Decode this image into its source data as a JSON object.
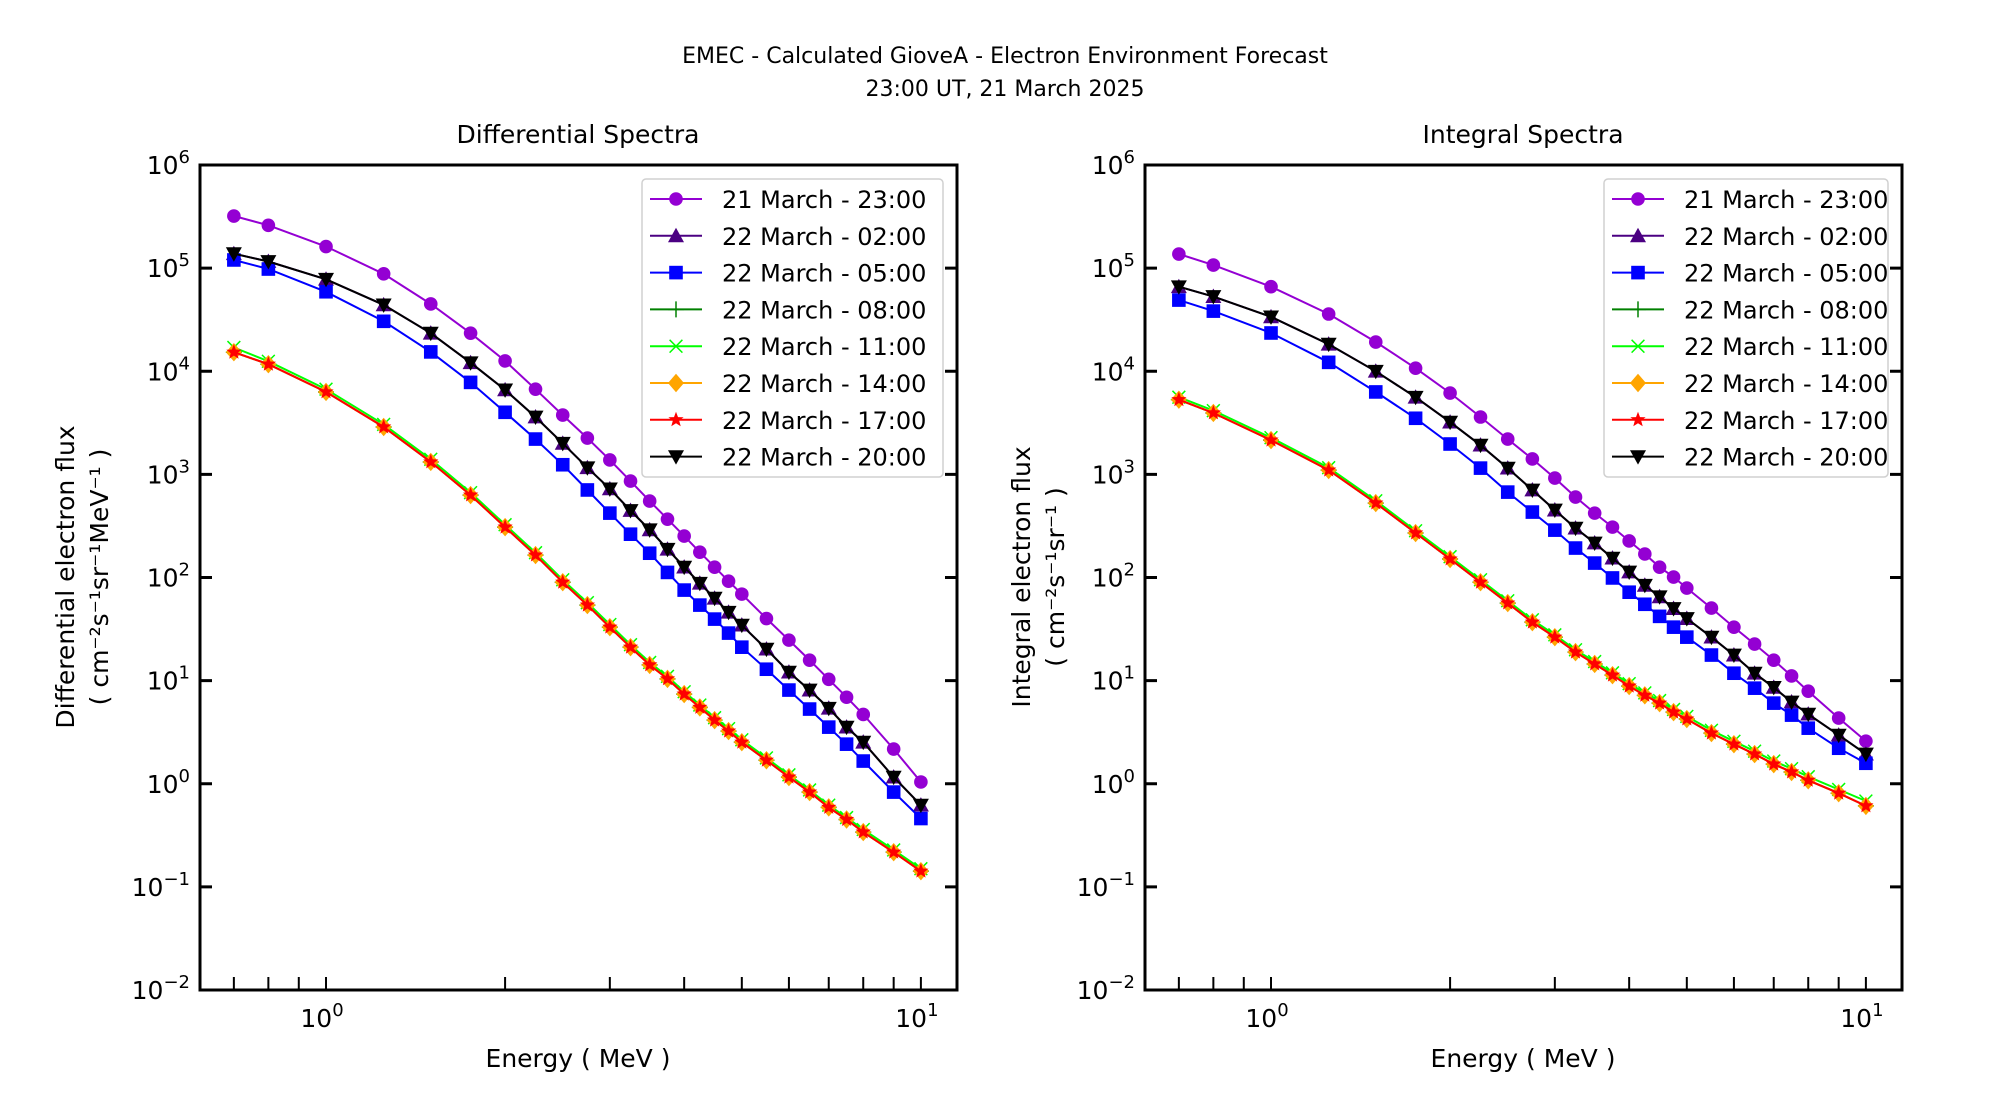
{
  "figure": {
    "title_line1": "EMEC - Calculated GioveA - Electron Environment Forecast",
    "title_line2": "23:00 UT, 21 March 2025"
  },
  "chart_data": [
    {
      "type": "line",
      "title": "Differential Spectra",
      "xlabel": "Energy ( MeV )",
      "ylabel_line1": "Differential electron flux",
      "ylabel_line2": "( cm⁻²s⁻¹sr⁻¹MeV⁻¹ )",
      "xscale": "log",
      "yscale": "log",
      "xlim": [
        0.614,
        11.5
      ],
      "ylim": [
        0.01,
        1000000
      ],
      "xticks": [
        {
          "value": 1,
          "base": "10",
          "exp": "0"
        },
        {
          "value": 10,
          "base": "10",
          "exp": "1"
        }
      ],
      "yticks": [
        {
          "value": 0.01,
          "base": "10",
          "exp": "−2"
        },
        {
          "value": 0.1,
          "base": "10",
          "exp": "−1"
        },
        {
          "value": 1,
          "base": "10",
          "exp": "0"
        },
        {
          "value": 10,
          "base": "10",
          "exp": "1"
        },
        {
          "value": 100,
          "base": "10",
          "exp": "2"
        },
        {
          "value": 1000,
          "base": "10",
          "exp": "3"
        },
        {
          "value": 10000,
          "base": "10",
          "exp": "4"
        },
        {
          "value": 100000,
          "base": "10",
          "exp": "5"
        },
        {
          "value": 1000000,
          "base": "10",
          "exp": "6"
        }
      ],
      "grid": false,
      "legend_position": "top-right",
      "x": [
        0.7,
        0.8,
        1.0,
        1.25,
        1.5,
        1.75,
        2.0,
        2.25,
        2.5,
        2.75,
        3.0,
        3.25,
        3.5,
        3.75,
        4.0,
        4.25,
        4.5,
        4.75,
        5.0,
        5.5,
        6.0,
        6.5,
        7.0,
        7.5,
        8.0,
        9.0,
        10.0
      ],
      "series": [
        {
          "name": "21 March - 23:00",
          "color": "#9400d3",
          "marker": "circle",
          "values": [
            320000,
            260000,
            162000,
            88000,
            44900,
            23400,
            12600,
            6700,
            3760,
            2250,
            1380,
            861,
            551,
            368,
            252,
            176,
            126,
            92,
            69,
            40,
            24.7,
            15.8,
            10.3,
            6.9,
            4.7,
            2.17,
            1.04
          ]
        },
        {
          "name": "22 March - 02:00",
          "color": "#4b0082",
          "marker": "triangle-up",
          "values": [
            138000,
            116000,
            78000,
            44000,
            23400,
            12100,
            6600,
            3600,
            2000,
            1160,
            724,
            446,
            290,
            188,
            126,
            88,
            63,
            46,
            34.5,
            20.2,
            12.1,
            8.1,
            5.4,
            3.54,
            2.53,
            1.16,
            0.62
          ]
        },
        {
          "name": "22 March - 05:00",
          "color": "#0000ff",
          "marker": "square",
          "values": [
            120000,
            98000,
            59000,
            30500,
            15400,
            7800,
            4000,
            2200,
            1240,
            706,
            421,
            263,
            172,
            112,
            75.5,
            54,
            39.5,
            28.9,
            21.1,
            12.9,
            8.1,
            5.3,
            3.54,
            2.42,
            1.66,
            0.83,
            0.46
          ]
        },
        {
          "name": "22 March - 08:00",
          "color": "#008000",
          "marker": "plus",
          "values": [
            15300,
            11700,
            6300,
            2880,
            1320,
            630,
            308,
            165,
            90,
            54,
            33,
            21.1,
            14.2,
            10.4,
            7.4,
            5.5,
            4.14,
            3.24,
            2.53,
            1.69,
            1.16,
            0.83,
            0.59,
            0.45,
            0.34,
            0.217,
            0.142
          ]
        },
        {
          "name": "22 March - 11:00",
          "color": "#00ff00",
          "marker": "x",
          "values": [
            17000,
            12500,
            6700,
            3050,
            1400,
            665,
            325,
            174,
            95,
            57,
            35,
            22.3,
            15,
            11,
            7.8,
            5.8,
            4.37,
            3.42,
            2.67,
            1.78,
            1.22,
            0.87,
            0.62,
            0.47,
            0.36,
            0.228,
            0.15
          ]
        },
        {
          "name": "22 March - 14:00",
          "color": "#ffa500",
          "marker": "diamond",
          "values": [
            15300,
            11700,
            6300,
            2880,
            1320,
            630,
            308,
            165,
            90,
            54,
            33,
            21.1,
            14.2,
            10.4,
            7.4,
            5.5,
            4.14,
            3.24,
            2.53,
            1.69,
            1.16,
            0.83,
            0.59,
            0.45,
            0.34,
            0.217,
            0.142
          ]
        },
        {
          "name": "22 March - 17:00",
          "color": "#ff0000",
          "marker": "star",
          "values": [
            15300,
            11700,
            6300,
            2880,
            1320,
            630,
            308,
            165,
            90,
            54,
            33,
            21.1,
            14.2,
            10.4,
            7.4,
            5.5,
            4.14,
            3.24,
            2.53,
            1.69,
            1.16,
            0.83,
            0.59,
            0.45,
            0.34,
            0.217,
            0.142
          ]
        },
        {
          "name": "22 March - 20:00",
          "color": "#000000",
          "marker": "triangle-down",
          "values": [
            138000,
            116000,
            78000,
            44000,
            23400,
            12100,
            6600,
            3600,
            2000,
            1160,
            724,
            446,
            290,
            188,
            126,
            88,
            63,
            46,
            34.5,
            20.2,
            12.1,
            8.1,
            5.4,
            3.54,
            2.53,
            1.16,
            0.62
          ]
        }
      ]
    },
    {
      "type": "line",
      "title": "Integral Spectra",
      "xlabel": "Energy ( MeV )",
      "ylabel_line1": "Integral electron flux",
      "ylabel_line2": "( cm⁻²s⁻¹sr⁻¹ )",
      "xscale": "log",
      "yscale": "log",
      "xlim": [
        0.614,
        11.5
      ],
      "ylim": [
        0.01,
        1000000
      ],
      "xticks": [
        {
          "value": 1,
          "base": "10",
          "exp": "0"
        },
        {
          "value": 10,
          "base": "10",
          "exp": "1"
        }
      ],
      "yticks": [
        {
          "value": 0.01,
          "base": "10",
          "exp": "−2"
        },
        {
          "value": 0.1,
          "base": "10",
          "exp": "−1"
        },
        {
          "value": 1,
          "base": "10",
          "exp": "0"
        },
        {
          "value": 10,
          "base": "10",
          "exp": "1"
        },
        {
          "value": 100,
          "base": "10",
          "exp": "2"
        },
        {
          "value": 1000,
          "base": "10",
          "exp": "3"
        },
        {
          "value": 10000,
          "base": "10",
          "exp": "4"
        },
        {
          "value": 100000,
          "base": "10",
          "exp": "5"
        },
        {
          "value": 1000000,
          "base": "10",
          "exp": "6"
        }
      ],
      "grid": false,
      "legend_position": "top-right",
      "x": [
        0.7,
        0.8,
        1.0,
        1.25,
        1.5,
        1.75,
        2.0,
        2.25,
        2.5,
        2.75,
        3.0,
        3.25,
        3.5,
        3.75,
        4.0,
        4.25,
        4.5,
        4.75,
        5.0,
        5.5,
        6.0,
        6.5,
        7.0,
        7.5,
        8.0,
        9.0,
        10.0
      ],
      "series": [
        {
          "name": "21 March - 23:00",
          "color": "#9400d3",
          "marker": "circle",
          "values": [
            137000,
            107000,
            66000,
            35900,
            19200,
            10700,
            6150,
            3600,
            2200,
            1410,
            920,
            603,
            421,
            308,
            226,
            169,
            126,
            101,
            79,
            50.5,
            33,
            22.6,
            15.8,
            11.1,
            7.9,
            4.33,
            2.59
          ]
        },
        {
          "name": "22 March - 02:00",
          "color": "#4b0082",
          "marker": "triangle-up",
          "values": [
            66000,
            53000,
            33700,
            18300,
            10000,
            5600,
            3210,
            1920,
            1150,
            705,
            451,
            301,
            216,
            154,
            113,
            84,
            65,
            50,
            40,
            26.4,
            17.7,
            11.8,
            8.6,
            6.2,
            4.73,
            2.96,
            1.94
          ]
        },
        {
          "name": "22 March - 05:00",
          "color": "#0000ff",
          "marker": "square",
          "values": [
            49000,
            38300,
            23500,
            12200,
            6300,
            3500,
            1970,
            1150,
            673,
            431,
            288,
            193,
            138,
            99,
            72,
            55,
            42,
            33,
            26.4,
            17.7,
            11.8,
            8.45,
            6.05,
            4.63,
            3.46,
            2.21,
            1.58
          ]
        },
        {
          "name": "22 March - 08:00",
          "color": "#008000",
          "marker": "plus",
          "values": [
            5300,
            3940,
            2150,
            1100,
            527,
            270,
            151,
            90,
            56.5,
            36.9,
            26.4,
            18.9,
            14.5,
            11.3,
            8.85,
            7.2,
            6.05,
            4.95,
            4.24,
            3.1,
            2.42,
            1.94,
            1.55,
            1.3,
            1.08,
            0.81,
            0.61
          ]
        },
        {
          "name": "22 March - 11:00",
          "color": "#00ff00",
          "marker": "x",
          "values": [
            5600,
            4150,
            2270,
            1160,
            555,
            284,
            159,
            95,
            59.5,
            38.9,
            27.8,
            19.9,
            15.3,
            11.9,
            9.35,
            7.6,
            6.4,
            5.25,
            4.5,
            3.3,
            2.58,
            2.07,
            1.66,
            1.4,
            1.17,
            0.88,
            0.68
          ]
        },
        {
          "name": "22 March - 14:00",
          "color": "#ffa500",
          "marker": "diamond",
          "values": [
            5300,
            3940,
            2150,
            1100,
            527,
            270,
            151,
            90,
            56.5,
            36.9,
            26.4,
            18.9,
            14.5,
            11.3,
            8.85,
            7.2,
            6.05,
            4.95,
            4.24,
            3.1,
            2.42,
            1.94,
            1.55,
            1.3,
            1.08,
            0.81,
            0.61
          ]
        },
        {
          "name": "22 March - 17:00",
          "color": "#ff0000",
          "marker": "star",
          "values": [
            5300,
            3940,
            2150,
            1100,
            527,
            270,
            151,
            90,
            56.5,
            36.9,
            26.4,
            18.9,
            14.5,
            11.3,
            8.85,
            7.2,
            6.05,
            4.95,
            4.24,
            3.1,
            2.42,
            1.94,
            1.55,
            1.3,
            1.08,
            0.81,
            0.61
          ]
        },
        {
          "name": "22 March - 20:00",
          "color": "#000000",
          "marker": "triangle-down",
          "values": [
            66000,
            53000,
            33700,
            18300,
            10000,
            5600,
            3210,
            1920,
            1150,
            705,
            451,
            301,
            216,
            154,
            113,
            84,
            65,
            50,
            40,
            26.4,
            17.7,
            11.8,
            8.6,
            6.2,
            4.73,
            2.96,
            1.94
          ]
        }
      ]
    }
  ]
}
